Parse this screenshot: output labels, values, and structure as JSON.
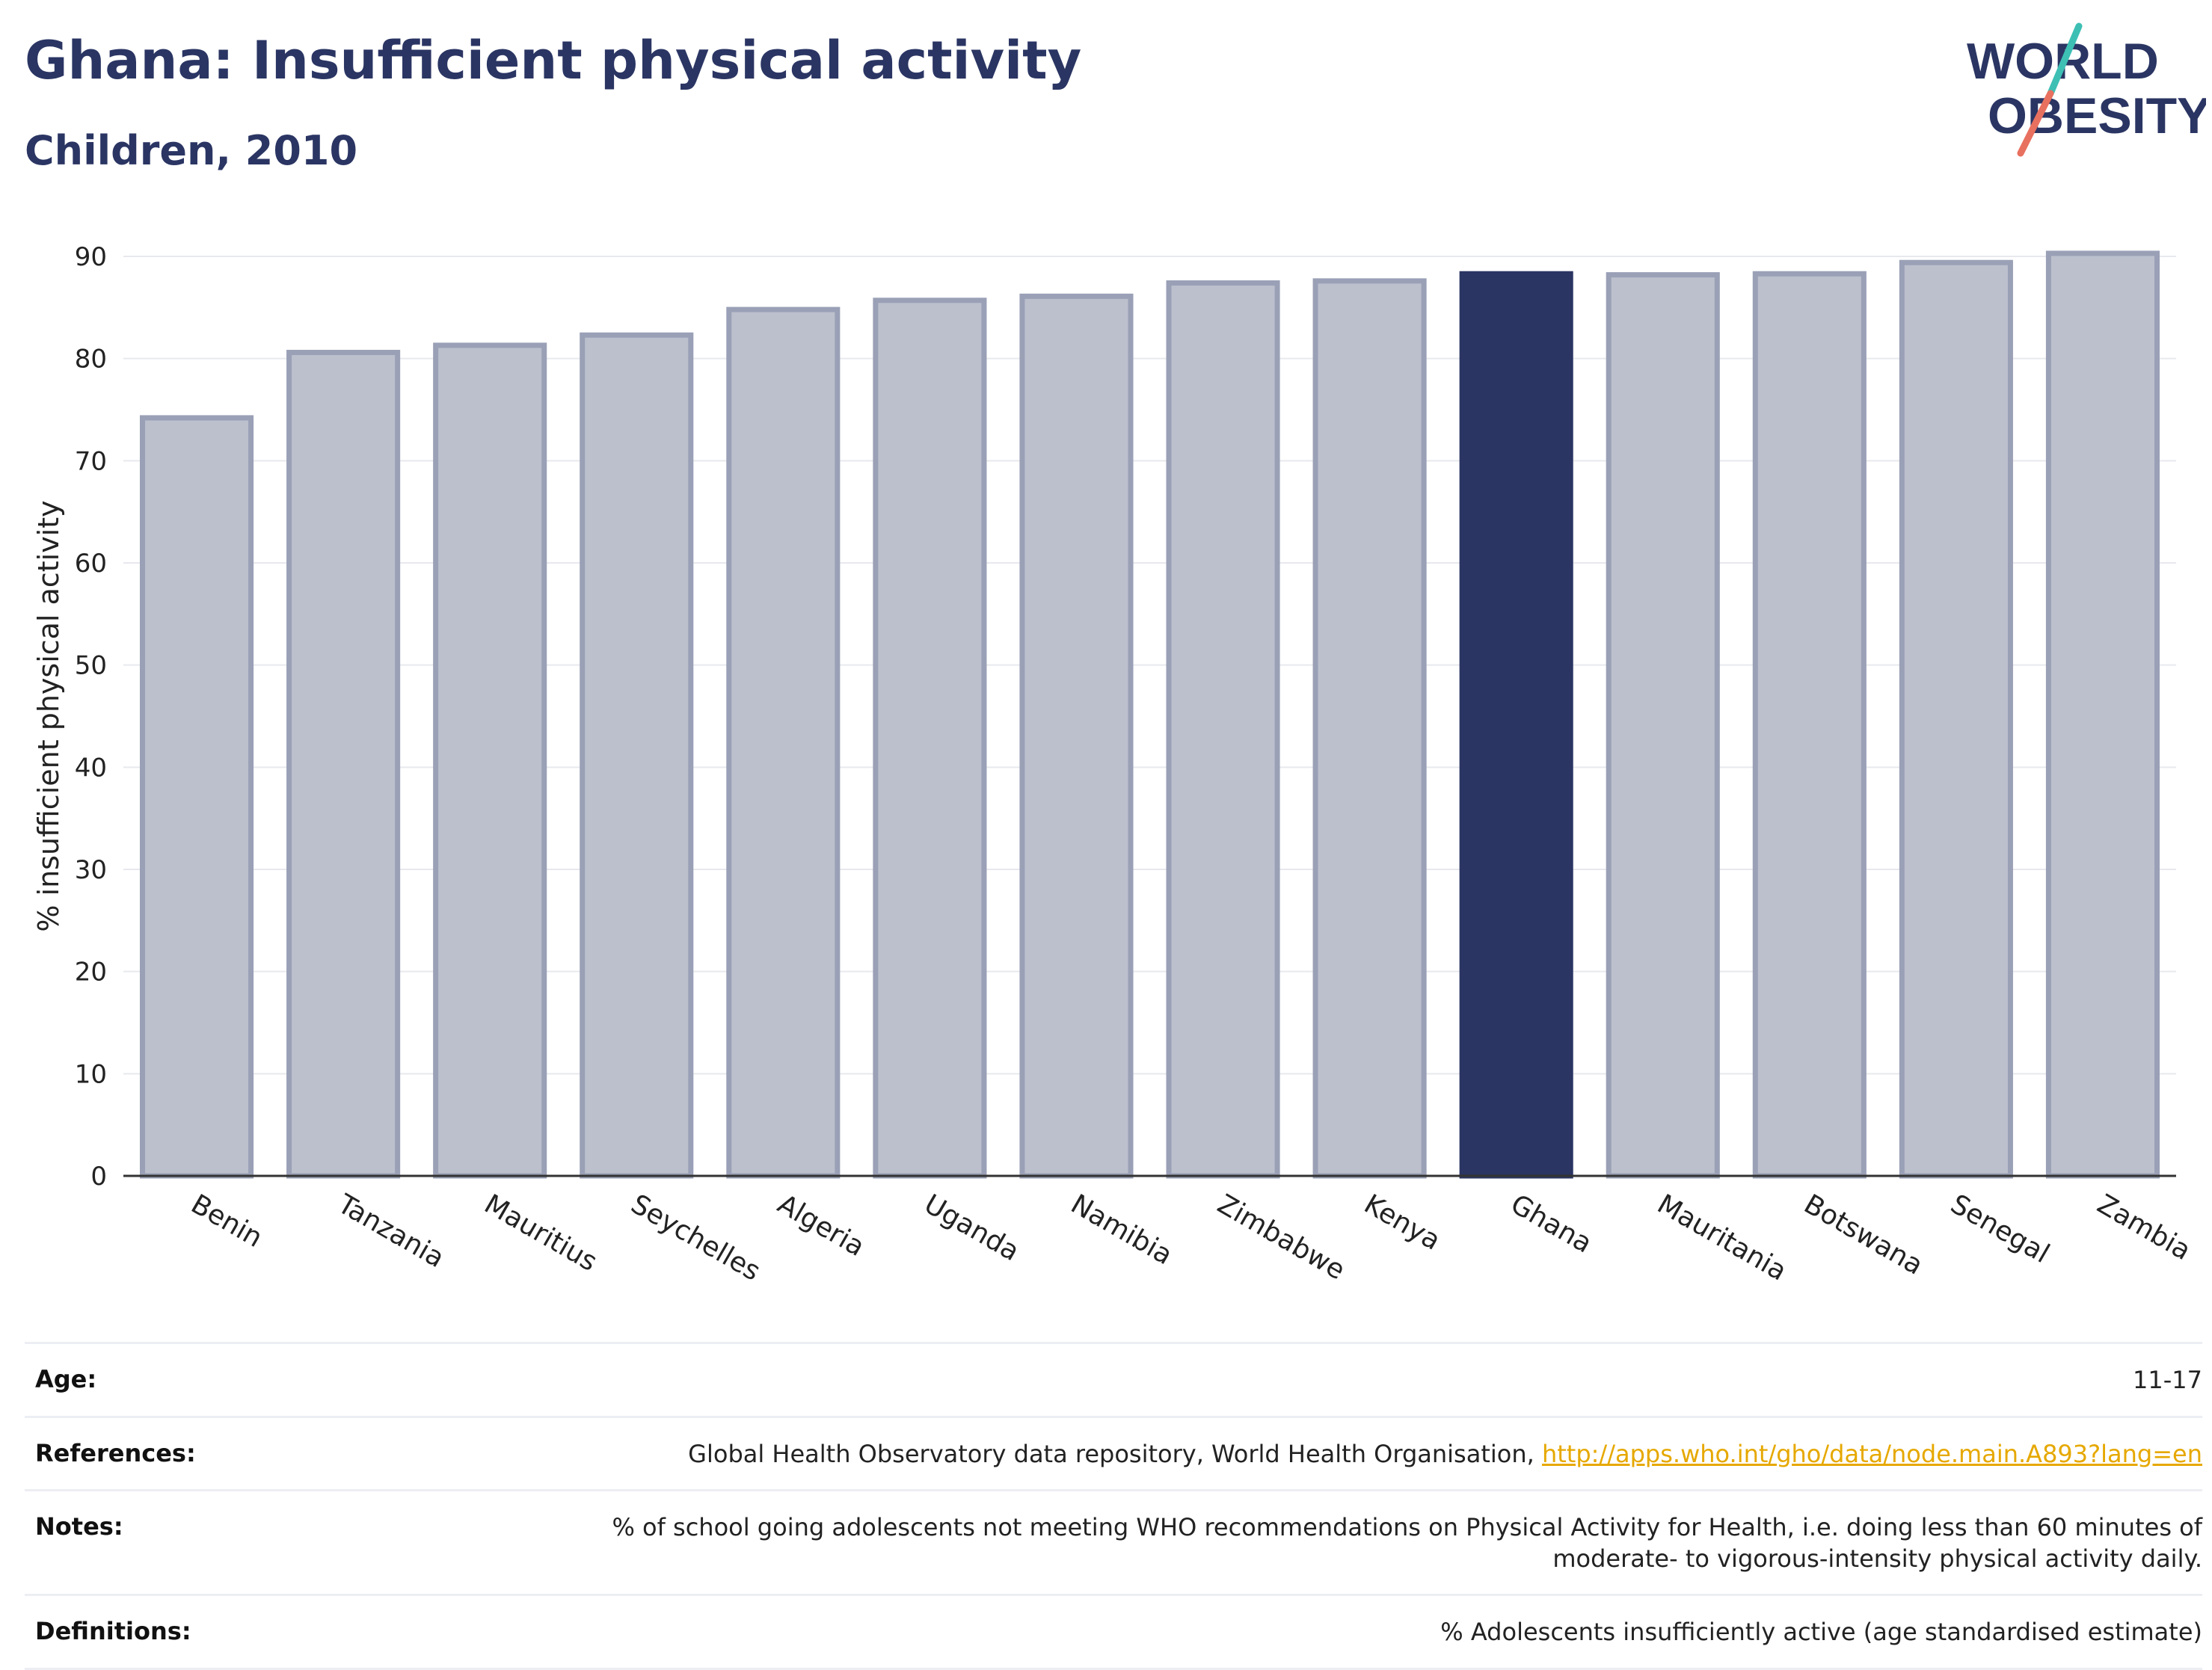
{
  "header": {
    "title": "Ghana: Insufficient physical activity",
    "subtitle": "Children, 2010"
  },
  "logo": {
    "line1": "WORLD",
    "line2": "OBESITY",
    "colors": {
      "text": "#2a3563",
      "teal": "#3dbfb4",
      "coral": "#e8705f"
    }
  },
  "chart_data": {
    "type": "bar",
    "categories": [
      "Benin",
      "Tanzania",
      "Mauritius",
      "Seychelles",
      "Algeria",
      "Uganda",
      "Namibia",
      "Zimbabwe",
      "Kenya",
      "Ghana",
      "Mauritania",
      "Botswana",
      "Senegal",
      "Zambia"
    ],
    "values": [
      74.2,
      80.6,
      81.3,
      82.3,
      84.8,
      85.7,
      86.1,
      87.4,
      87.6,
      88.3,
      88.2,
      88.3,
      89.4,
      90.3
    ],
    "highlight": "Ghana",
    "xlabel": "",
    "ylabel": "% insufficient physical activity",
    "ylim": [
      0,
      90
    ],
    "yticks": [
      0,
      10,
      20,
      30,
      40,
      50,
      60,
      70,
      80,
      90
    ],
    "grid": true,
    "colors": {
      "bar": "#bcc0cd",
      "bar_border": "#9aa0b6",
      "highlight": "#2a3563",
      "grid": "#e8e9ee",
      "axis": "#333333"
    }
  },
  "meta": {
    "age": {
      "label": "Age:",
      "value": "11-17"
    },
    "references": {
      "label": "References:",
      "text": "Global Health Observatory data repository, World Health Organisation, ",
      "link": "http://apps.who.int/gho/data/node.main.A893?lang=en"
    },
    "notes": {
      "label": "Notes:",
      "line1": "% of school going adolescents not meeting WHO recommendations on Physical Activity for Health, i.e. doing less than 60 minutes of",
      "line2": "moderate- to vigorous-intensity physical activity daily."
    },
    "definitions": {
      "label": "Definitions:",
      "value": "% Adolescents insufficiently active (age standardised estimate)"
    }
  }
}
